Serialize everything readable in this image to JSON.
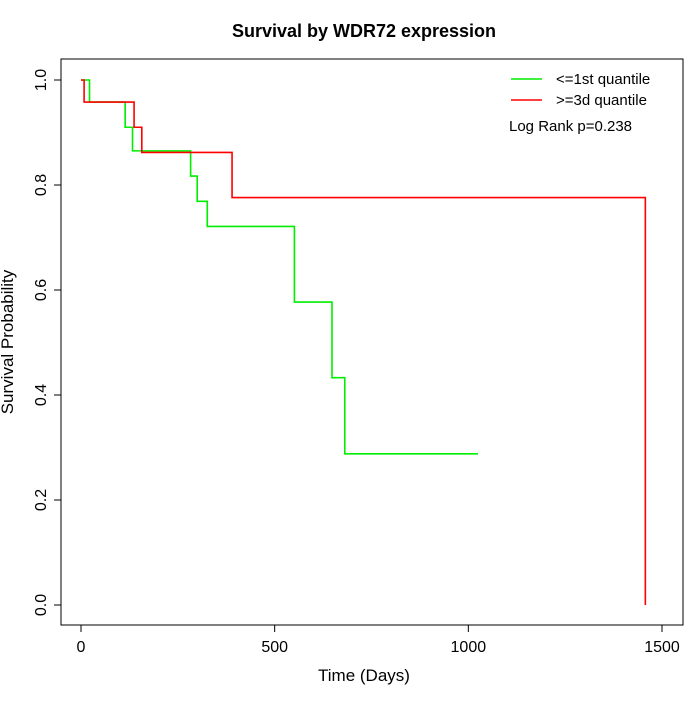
{
  "chart_data": {
    "type": "line",
    "subtype": "kaplan-meier step",
    "title": "Survival by WDR72 expression",
    "xlabel": "Time (Days)",
    "ylabel": "Survival Probability",
    "xlim": [
      0,
      1500
    ],
    "ylim": [
      0,
      1
    ],
    "x_ticks": [
      0,
      500,
      1000,
      1500
    ],
    "y_ticks": [
      0.0,
      0.2,
      0.4,
      0.6,
      0.8,
      1.0
    ],
    "x_tick_labels": [
      "0",
      "500",
      "1000",
      "1500"
    ],
    "y_tick_labels": [
      "0.0",
      "0.2",
      "0.4",
      "0.6",
      "0.8",
      "1.0"
    ],
    "grid": false,
    "legend_position": "top-right",
    "annotation": "Log Rank p=0.238",
    "series": [
      {
        "name": "<=1st quantile",
        "color": "#00ee00",
        "x": [
          0,
          22,
          114,
          133,
          283,
          300,
          326,
          551,
          648,
          681,
          1025
        ],
        "y": [
          1.0,
          0.958,
          0.91,
          0.865,
          0.817,
          0.769,
          0.721,
          0.577,
          0.433,
          0.288,
          0.288
        ]
      },
      {
        "name": ">=3d quantile",
        "color": "#ff0000",
        "x": [
          0,
          8,
          137,
          157,
          390,
          1457
        ],
        "y": [
          1.0,
          0.958,
          0.91,
          0.862,
          0.776,
          0.0
        ]
      }
    ]
  }
}
